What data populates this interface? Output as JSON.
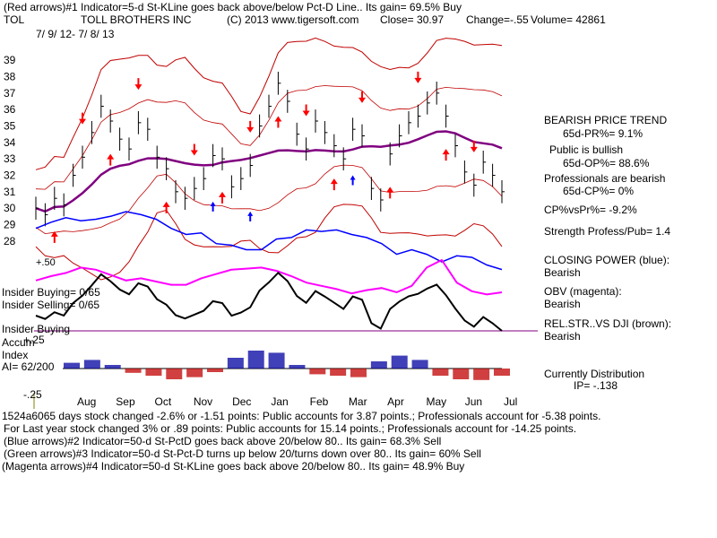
{
  "header": {
    "line1": "(Red arrows)#1 Indicator=5-d St-KLine goes back above/below Pct-D Line.. Its gain= 69.5% Buy",
    "ticker": "TOL",
    "company": "TOLL BROTHERS INC",
    "copyright": "(C) 2013 www.tigersoft.com",
    "close": "Close=  30.97",
    "change": "Change=-.55",
    "volume": "Volume= 42861",
    "date_range": "7/ 9/ 12-  7/ 8/ 13"
  },
  "right_panel": {
    "trend_title": "BEARISH PRICE TREND",
    "pr": "65d-PR%= 9.1%",
    "public": "Public is bullish",
    "op": "65d-OP%= 88.6%",
    "professionals": "Professionals are bearish",
    "cp": "65d-CP%= 0%",
    "cpvspr": "CP%vsPr%= -9.2%",
    "strength": "Strength Profess/Pub= 1.4",
    "closing_power_title": "CLOSING POWER (blue):",
    "closing_power_value": "Bearish",
    "obv_title": "OBV (magenta):",
    "obv_value": "Bearish",
    "relstr_title": "REL.STR..VS DJI (brown):",
    "relstr_value": "Bearish",
    "distribution_title": "Currently Distribution",
    "ip": "IP= -.138"
  },
  "left_labels": {
    "insider_buying": "Insider Buying= 0/65",
    "insider_selling": "Insider Selling= 0/65",
    "insider_buying2": "Insider Buying",
    "accum_index": "Accum",
    "plus25": "+.25",
    "index": "Index",
    "ai": "AI= 62/200",
    "minus25": "-.25",
    "plus50": "+.50"
  },
  "footer": {
    "line1": "1524a6065 days stock changed -2.6% or -1.51 points:  Public accounts for  3.87 points.;  Professionals account for -5.38 points.",
    "line2": "For Last year stock changed  3% or  .89 points:  Public accounts for  15.14 points.;  Professionals account for -14.25 points.",
    "line3": "(Blue arrows)#2 Indicator=50-d St-PctD goes back above 20/below 80.. Its gain= 68.3% Sell",
    "line4": "(Green arrows)#3 Indicator=50-d St-Pct-D turns up below 20/turns down over 80.. Its gain= 60% Sell",
    "line5": "(Magenta arrows)#4 Indicator=50-d St-KLine goes back above 20/below 80.. Its gain= 48.9% Buy"
  },
  "colors": {
    "price": "#000000",
    "bands": "#c00000",
    "ma": "#800080",
    "closing_power": "#0000ff",
    "obv": "#ff00ff",
    "relstr": "#000000",
    "accum_pos": "#0000a0",
    "accum_neg": "#c00000",
    "arrow_red": "#ff0000",
    "arrow_blue": "#0000ff"
  },
  "chart_data": {
    "type": "line",
    "title": "TOLL BROTHERS INC",
    "y_ticks": [
      39,
      38,
      37,
      36,
      35,
      34,
      33,
      32,
      31,
      30,
      29,
      28
    ],
    "ylim": [
      27.5,
      39.5
    ],
    "months": [
      "Aug",
      "Sep",
      "Oct",
      "Nov",
      "Dec",
      "Jan",
      "Feb",
      "Mar",
      "Apr",
      "May",
      "Jun",
      "Jul"
    ],
    "price": {
      "x": [
        0,
        5,
        10,
        15,
        20,
        25,
        30,
        35,
        40,
        45,
        50,
        55,
        60,
        65,
        70,
        75,
        80,
        85,
        90,
        95,
        100,
        105,
        110,
        115,
        120,
        125,
        130,
        135,
        140,
        145,
        150,
        155,
        160,
        165,
        170,
        175,
        180,
        185,
        190,
        195,
        200,
        205,
        210,
        215,
        220,
        225,
        230,
        235,
        240,
        245,
        250
      ],
      "close": [
        30.0,
        29.6,
        30.6,
        30.2,
        32.0,
        33.1,
        34.6,
        36.2,
        35.3,
        34.2,
        33.6,
        35.2,
        34.8,
        33.1,
        32.4,
        31.0,
        30.6,
        31.2,
        31.8,
        33.2,
        33.0,
        31.3,
        31.8,
        32.6,
        35.0,
        36.2,
        37.6,
        36.5,
        34.5,
        33.6,
        35.3,
        34.6,
        33.8,
        33.0,
        34.8,
        34.4,
        31.2,
        30.5,
        33.3,
        34.4,
        35.2,
        35.6,
        36.4,
        37.0,
        35.6,
        33.8,
        32.2,
        31.4,
        32.8,
        32.0,
        31.0
      ]
    },
    "closing_power": [
      29.6,
      30.0,
      30.3,
      30.1,
      30.2,
      30.4,
      30.7,
      30.5,
      30.2,
      29.6,
      29.2,
      29.3,
      28.6,
      28.5,
      28.2,
      28.2,
      28.9,
      29.0,
      29.5,
      29.4,
      29.5,
      29.2,
      29.0,
      28.6,
      27.9,
      28.2,
      27.9,
      27.4,
      27.8,
      27.7,
      27.2,
      26.9
    ],
    "obv": [
      25.4,
      25.8,
      26.1,
      26.6,
      26.4,
      25.9,
      25.4,
      25.6,
      25.3,
      25.0,
      25.0,
      25.6,
      26.0,
      26.4,
      26.5,
      26.6,
      26.3,
      25.8,
      25.2,
      24.9,
      24.6,
      24.2,
      24.5,
      24.7,
      24.3,
      24.9,
      26.6,
      27.3,
      25.2,
      24.4,
      24.1,
      24.3
    ],
    "accumulation_index": [
      0.08,
      0.12,
      0.05,
      -0.06,
      -0.1,
      -0.15,
      -0.12,
      -0.05,
      0.15,
      0.25,
      0.22,
      0.05,
      -0.08,
      -0.1,
      -0.12,
      0.1,
      0.18,
      0.12,
      -0.1,
      -0.15,
      -0.16,
      -0.1
    ]
  }
}
